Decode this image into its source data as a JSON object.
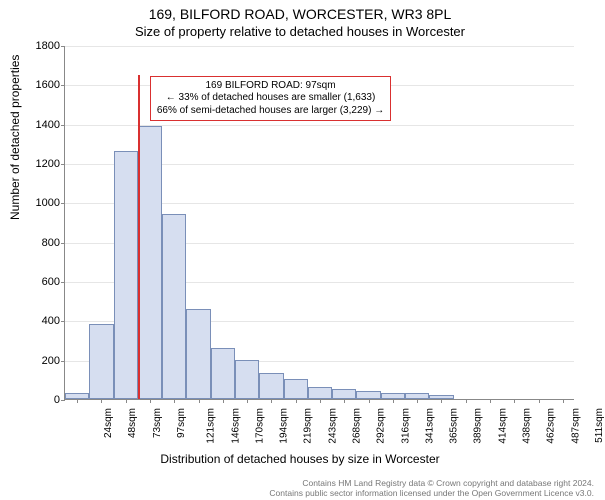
{
  "title_main": "169, BILFORD ROAD, WORCESTER, WR3 8PL",
  "title_sub": "Size of property relative to detached houses in Worcester",
  "y_axis_label": "Number of detached properties",
  "x_axis_label": "Distribution of detached houses by size in Worcester",
  "chart": {
    "type": "histogram",
    "ylim": [
      0,
      1800
    ],
    "ytick_step": 200,
    "bar_fill": "#d6def0",
    "bar_border": "#7a8fb8",
    "grid_color": "#e6e6e6",
    "background_color": "#ffffff",
    "marker_color": "#d93030",
    "categories": [
      "24sqm",
      "48sqm",
      "73sqm",
      "97sqm",
      "121sqm",
      "146sqm",
      "170sqm",
      "194sqm",
      "219sqm",
      "243sqm",
      "268sqm",
      "292sqm",
      "316sqm",
      "341sqm",
      "365sqm",
      "389sqm",
      "414sqm",
      "438sqm",
      "462sqm",
      "487sqm",
      "511sqm"
    ],
    "values": [
      30,
      380,
      1260,
      1390,
      940,
      460,
      260,
      200,
      130,
      100,
      60,
      50,
      40,
      30,
      30,
      20,
      0,
      0,
      0,
      0,
      0
    ],
    "marker_at_category_boundary": 3,
    "marker_height_value": 1650,
    "title_fontsize": 14,
    "label_fontsize": 12,
    "tick_fontsize": 11
  },
  "annotation": {
    "line1": "169 BILFORD ROAD: 97sqm",
    "line2": "← 33% of detached houses are smaller (1,633)",
    "line3": "66% of semi-detached houses are larger (3,229) →"
  },
  "footer": {
    "line1": "Contains HM Land Registry data © Crown copyright and database right 2024.",
    "line2": "Contains public sector information licensed under the Open Government Licence v3.0."
  }
}
